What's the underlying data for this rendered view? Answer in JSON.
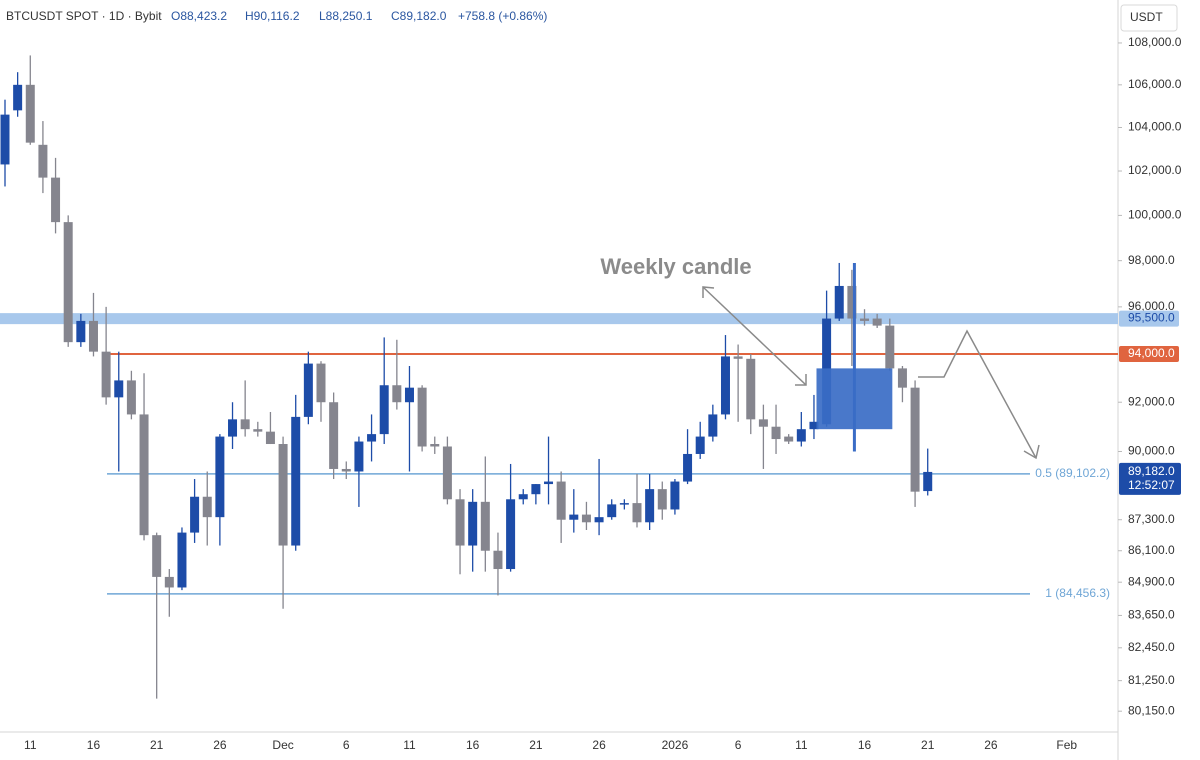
{
  "chart_data": {
    "type": "candlestick",
    "header": {
      "symbol": "BTCUSDT SPOT · 1D · Bybit",
      "open": "O88,423.2",
      "high": "H90,116.2",
      "low": "L88,250.1",
      "close": "C89,182.0",
      "change": "+758.8 (+0.86%)"
    },
    "currency": "USDT",
    "categories": [
      null,
      null,
      "11",
      null,
      null,
      null,
      null,
      "16",
      null,
      null,
      null,
      null,
      "21",
      null,
      null,
      null,
      null,
      "26",
      null,
      null,
      null,
      null,
      "Dec",
      null,
      null,
      null,
      null,
      "6",
      null,
      null,
      null,
      null,
      "11",
      null,
      null,
      null,
      null,
      "16",
      null,
      null,
      null,
      null,
      "21",
      null,
      null,
      null,
      null,
      "26",
      null,
      null,
      null,
      null,
      null,
      "2026",
      null,
      null,
      null,
      null,
      "6",
      null,
      null,
      null,
      null,
      "11",
      null,
      null,
      null,
      null,
      "16",
      null,
      null,
      null,
      null,
      "21",
      null,
      null,
      null,
      null,
      "26",
      null,
      null,
      null,
      null,
      null,
      "Feb"
    ],
    "open": [
      102300,
      104800,
      106000,
      103200,
      101700,
      99700,
      94500,
      95400,
      94100,
      92200,
      92900,
      91500,
      86700,
      85100,
      84700,
      86800,
      88200,
      87400,
      90600,
      91300,
      90900,
      90800,
      90300,
      86300,
      91400,
      93600,
      92000,
      89300,
      89200,
      90400,
      90700,
      92700,
      92000,
      92600,
      90300,
      90200,
      88100,
      86300,
      88000,
      86100,
      85400,
      88100,
      88300,
      88700,
      88800,
      87300,
      87500,
      87200,
      87400,
      87900,
      87950,
      87200,
      88500,
      87700,
      88800,
      89900,
      90600,
      91500,
      93900,
      93800,
      91300,
      91000,
      90600,
      90400,
      90900,
      91100,
      95500,
      96900,
      95500,
      95500,
      95200,
      93400,
      92600,
      88423.2,
      null,
      null,
      null,
      null,
      null,
      null,
      null,
      null,
      null,
      null,
      null
    ],
    "high": [
      105300,
      106600,
      107400,
      104300,
      102600,
      100000,
      95700,
      96600,
      96000,
      94100,
      93300,
      93200,
      86800,
      85400,
      87000,
      88900,
      89200,
      90700,
      92000,
      92900,
      91200,
      91600,
      90600,
      92300,
      94100,
      93700,
      92400,
      89600,
      90600,
      91500,
      94700,
      94600,
      93500,
      92700,
      90600,
      90600,
      88500,
      88500,
      89800,
      86800,
      89500,
      88500,
      88700,
      90600,
      89200,
      88500,
      88000,
      89700,
      88100,
      88100,
      89100,
      89100,
      88800,
      88900,
      90900,
      91200,
      91900,
      94800,
      94400,
      94000,
      91900,
      91900,
      90700,
      91600,
      92300,
      96700,
      97900,
      97600,
      95900,
      95700,
      95500,
      93500,
      92900,
      90116.2,
      null,
      null,
      null,
      null,
      null,
      null,
      null,
      null,
      null,
      null,
      null
    ],
    "low": [
      101300,
      104500,
      103200,
      101000,
      99200,
      94300,
      94300,
      93900,
      91900,
      89200,
      91300,
      86500,
      80600,
      83600,
      84600,
      86400,
      86300,
      86300,
      90100,
      90600,
      90600,
      90300,
      83900,
      86100,
      91100,
      91200,
      88900,
      88900,
      87800,
      89600,
      90300,
      91700,
      89200,
      90000,
      89900,
      87900,
      85200,
      85300,
      85300,
      84400,
      85300,
      87900,
      87900,
      87900,
      86400,
      86800,
      86900,
      86700,
      87300,
      87700,
      87000,
      86900,
      87300,
      87500,
      88700,
      89700,
      90400,
      91300,
      91200,
      90700,
      89300,
      89900,
      90300,
      90200,
      90500,
      91000,
      95400,
      93500,
      95200,
      95100,
      93300,
      92000,
      87800,
      88250.1,
      null,
      null,
      null,
      null,
      null,
      null,
      null,
      null,
      null,
      null,
      null
    ],
    "close": [
      104600,
      106000,
      103300,
      101700,
      99700,
      94500,
      95400,
      94100,
      92200,
      92900,
      91500,
      86700,
      85100,
      84700,
      86800,
      88200,
      87400,
      90600,
      91300,
      90900,
      90800,
      90300,
      86300,
      91400,
      93600,
      92000,
      89300,
      89200,
      90400,
      90700,
      92700,
      92000,
      92600,
      90200,
      90200,
      88100,
      86300,
      88000,
      86100,
      85400,
      88100,
      88300,
      88700,
      88800,
      87300,
      87500,
      87200,
      87400,
      87900,
      87950,
      87200,
      88500,
      87700,
      88800,
      89900,
      90600,
      91500,
      93900,
      93800,
      91300,
      91000,
      90500,
      90400,
      90900,
      91200,
      95500,
      96900,
      95500,
      95400,
      95200,
      93400,
      92600,
      88400,
      89182,
      null,
      null,
      null,
      null,
      null,
      null,
      null,
      null,
      null,
      null,
      null
    ],
    "up_color": "#1d4ca8",
    "down_color": "#85858e",
    "log_scale": true,
    "ylim": [
      79480,
      110090
    ],
    "yticks": [
      {
        "value": 108000,
        "label": "108,000.0"
      },
      {
        "value": 106000,
        "label": "106,000.0"
      },
      {
        "value": 104000,
        "label": "104,000.0"
      },
      {
        "value": 102000,
        "label": "102,000.0"
      },
      {
        "value": 100000,
        "label": "100,000.0"
      },
      {
        "value": 98000,
        "label": "98,000.0"
      },
      {
        "value": 96000,
        "label": "96,000.0"
      },
      {
        "value": 92000,
        "label": "92,000.0"
      },
      {
        "value": 90000,
        "label": "90,000.0"
      },
      {
        "value": 87300,
        "label": "87,300.0"
      },
      {
        "value": 86100,
        "label": "86,100.0"
      },
      {
        "value": 84900,
        "label": "84,900.0"
      },
      {
        "value": 83650,
        "label": "83,650.0"
      },
      {
        "value": 82450,
        "label": "82,450.0"
      },
      {
        "value": 81250,
        "label": "81,250.0"
      },
      {
        "value": 80150,
        "label": "80,150.0"
      }
    ],
    "levels": [
      {
        "value": 95500,
        "label": "95,500.0",
        "color": "#a8c8ec"
      },
      {
        "value": 94000,
        "label": "94,000.0",
        "color": "#e0643f"
      }
    ],
    "fib": [
      {
        "value": 89102.2,
        "label": "0.5 (89,102.2)"
      },
      {
        "value": 84456.3,
        "label": "1 (84,456.3)"
      }
    ],
    "fib_color": "#6fa6d6",
    "last_price": {
      "value": 89182,
      "label": "89,182.0",
      "countdown": "12:52:07"
    },
    "weekly_candle": {
      "label": "Weekly candle",
      "open": 90900,
      "high": 97900,
      "low": 90000,
      "close": 93400,
      "color": "#3a6cc6"
    }
  }
}
